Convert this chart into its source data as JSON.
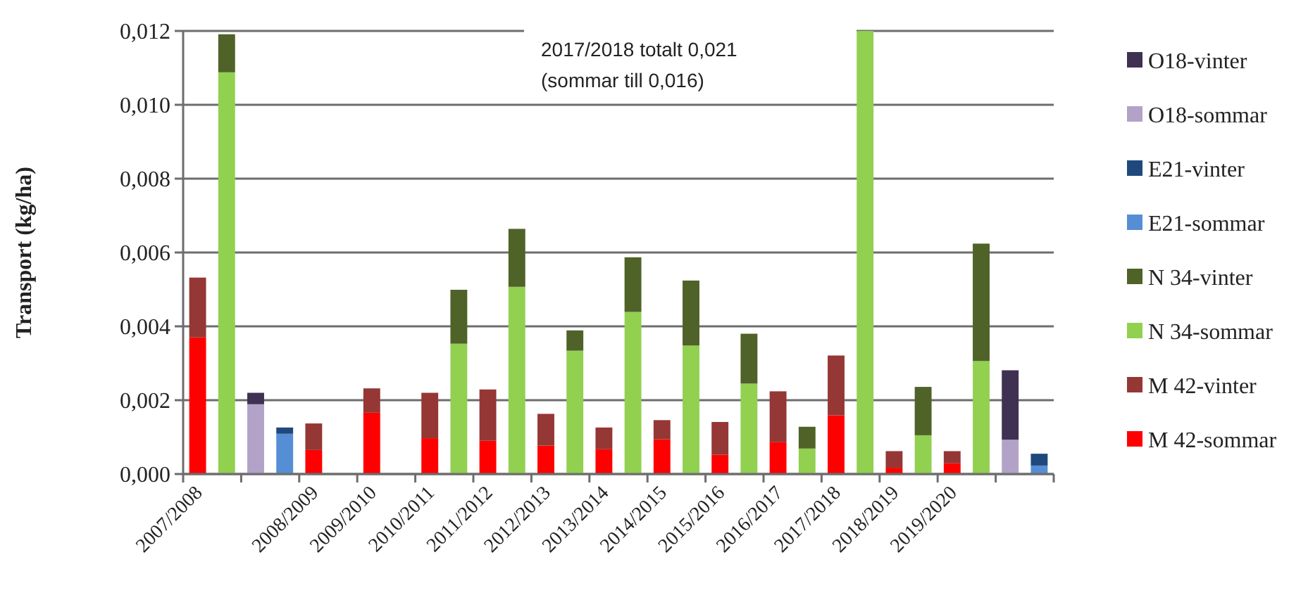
{
  "chart_data": {
    "type": "bar",
    "stacked": true,
    "ylabel": "Transport (kg/ha)",
    "categories": [
      "2007/2008",
      null,
      null,
      null,
      "2008/2009",
      null,
      "2009/2010",
      null,
      "2010/2011",
      null,
      "2011/2012",
      null,
      "2012/2013",
      null,
      "2013/2014",
      null,
      "2014/2015",
      null,
      "2015/2016",
      null,
      "2016/2017",
      null,
      "2017/2018",
      null,
      "2018/2019",
      null,
      "2019/2020",
      null,
      null,
      null
    ],
    "series": [
      {
        "name": "M 42-sommar",
        "color": "#ff0000",
        "values": [
          0.0037,
          null,
          null,
          null,
          0.00065,
          null,
          0.00166,
          null,
          0.00097,
          null,
          0.0009,
          null,
          0.00077,
          null,
          0.00067,
          null,
          0.00094,
          null,
          0.00052,
          null,
          0.00086,
          null,
          0.00159,
          null,
          0.00017,
          null,
          0.00029,
          null,
          null,
          null
        ]
      },
      {
        "name": "M 42-vinter",
        "color": "#953735",
        "values": [
          0.00162,
          null,
          null,
          null,
          0.00072,
          null,
          0.00066,
          null,
          0.00123,
          null,
          0.00139,
          null,
          0.00086,
          null,
          0.00059,
          null,
          0.00052,
          null,
          0.00089,
          null,
          0.00138,
          null,
          0.00162,
          null,
          0.00045,
          null,
          0.00033,
          null,
          null,
          null
        ]
      },
      {
        "name": "N 34-sommar",
        "color": "#92d050",
        "values": [
          null,
          0.01088,
          null,
          null,
          null,
          null,
          null,
          null,
          null,
          0.00353,
          null,
          0.00507,
          null,
          0.00334,
          null,
          0.00439,
          null,
          0.00348,
          null,
          0.00245,
          null,
          0.00069,
          null,
          0.012,
          null,
          0.00105,
          null,
          0.00306,
          null,
          null
        ]
      },
      {
        "name": "N 34-vinter",
        "color": "#4f6228",
        "values": [
          null,
          0.00103,
          null,
          null,
          null,
          null,
          null,
          null,
          null,
          0.00146,
          null,
          0.00157,
          null,
          0.00055,
          null,
          0.00148,
          null,
          0.00176,
          null,
          0.00135,
          null,
          0.00059,
          null,
          null,
          null,
          0.00131,
          null,
          0.00318,
          null,
          null
        ]
      },
      {
        "name": "E21-sommar",
        "color": "#558ed5",
        "values": [
          null,
          null,
          null,
          0.00109,
          null,
          null,
          null,
          null,
          null,
          null,
          null,
          null,
          null,
          null,
          null,
          null,
          null,
          null,
          null,
          null,
          null,
          null,
          null,
          null,
          null,
          null,
          null,
          null,
          null,
          0.00023
        ]
      },
      {
        "name": "E21-vinter",
        "color": "#1f497d",
        "values": [
          null,
          null,
          null,
          0.00017,
          null,
          null,
          null,
          null,
          null,
          null,
          null,
          null,
          null,
          null,
          null,
          null,
          null,
          null,
          null,
          null,
          null,
          null,
          null,
          null,
          null,
          null,
          null,
          null,
          null,
          0.00032
        ]
      },
      {
        "name": "O18-sommar",
        "color": "#b3a2c7",
        "values": [
          null,
          null,
          0.00189,
          null,
          null,
          null,
          null,
          null,
          null,
          null,
          null,
          null,
          null,
          null,
          null,
          null,
          null,
          null,
          null,
          null,
          null,
          null,
          null,
          null,
          null,
          null,
          null,
          null,
          0.00093,
          null
        ]
      },
      {
        "name": "O18-vinter",
        "color": "#3f3151",
        "values": [
          null,
          null,
          0.00031,
          null,
          null,
          null,
          null,
          null,
          null,
          null,
          null,
          null,
          null,
          null,
          null,
          null,
          null,
          null,
          null,
          null,
          null,
          null,
          null,
          null,
          null,
          null,
          null,
          null,
          0.00188,
          null
        ]
      }
    ],
    "ylim": [
      0,
      0.012
    ],
    "yticks": [
      {
        "value": 0,
        "label": "0,000"
      },
      {
        "value": 0.002,
        "label": "0,002"
      },
      {
        "value": 0.004,
        "label": "0,004"
      },
      {
        "value": 0.006,
        "label": "0,006"
      },
      {
        "value": 0.008,
        "label": "0,008"
      },
      {
        "value": 0.01,
        "label": "0,010"
      },
      {
        "value": 0.012,
        "label": "0,012"
      }
    ],
    "grid": "y",
    "legend": "right",
    "annotations": [
      "2017/2018 totalt 0,021",
      "(sommar till 0,016)"
    ]
  }
}
